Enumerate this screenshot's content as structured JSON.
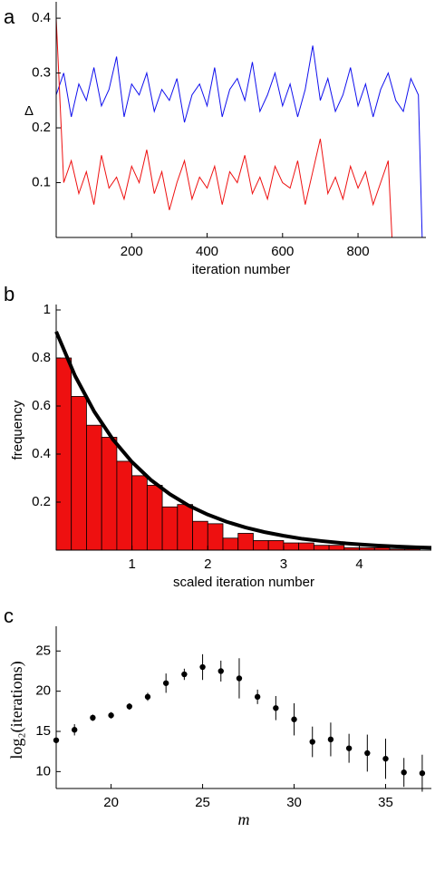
{
  "chart_data": [
    {
      "type": "line",
      "panel_label": "a",
      "ylabel": "Δ",
      "xlabel": "iteration number",
      "xlim": [
        0,
        980
      ],
      "xticks": [
        200,
        400,
        600,
        800
      ],
      "ylim": [
        0,
        0.42
      ],
      "yticks": [
        0.1,
        0.2,
        0.3,
        0.4
      ],
      "series": [
        {
          "color": "#1010ee",
          "x": [
            0,
            20,
            40,
            60,
            80,
            100,
            120,
            140,
            160,
            180,
            200,
            220,
            240,
            260,
            280,
            300,
            320,
            340,
            360,
            380,
            400,
            420,
            440,
            460,
            480,
            500,
            520,
            540,
            560,
            580,
            600,
            620,
            640,
            660,
            680,
            700,
            720,
            740,
            760,
            780,
            800,
            820,
            840,
            860,
            880,
            900,
            920,
            940,
            960,
            970
          ],
          "values": [
            0.26,
            0.3,
            0.22,
            0.28,
            0.25,
            0.31,
            0.24,
            0.27,
            0.33,
            0.22,
            0.28,
            0.26,
            0.3,
            0.23,
            0.27,
            0.25,
            0.29,
            0.21,
            0.26,
            0.28,
            0.24,
            0.31,
            0.22,
            0.27,
            0.29,
            0.25,
            0.32,
            0.23,
            0.26,
            0.3,
            0.24,
            0.28,
            0.22,
            0.27,
            0.35,
            0.25,
            0.29,
            0.23,
            0.26,
            0.31,
            0.24,
            0.28,
            0.22,
            0.27,
            0.3,
            0.25,
            0.23,
            0.29,
            0.26,
            0.0
          ]
        },
        {
          "color": "#ee1010",
          "x": [
            0,
            20,
            40,
            60,
            80,
            100,
            120,
            140,
            160,
            180,
            200,
            220,
            240,
            260,
            280,
            300,
            320,
            340,
            360,
            380,
            400,
            420,
            440,
            460,
            480,
            500,
            520,
            540,
            560,
            580,
            600,
            620,
            640,
            660,
            680,
            700,
            720,
            740,
            760,
            780,
            800,
            820,
            840,
            860,
            880,
            890
          ],
          "values": [
            0.4,
            0.1,
            0.14,
            0.08,
            0.12,
            0.06,
            0.15,
            0.09,
            0.11,
            0.07,
            0.13,
            0.1,
            0.16,
            0.08,
            0.12,
            0.05,
            0.1,
            0.14,
            0.07,
            0.11,
            0.09,
            0.13,
            0.06,
            0.12,
            0.1,
            0.15,
            0.08,
            0.11,
            0.07,
            0.13,
            0.1,
            0.09,
            0.14,
            0.06,
            0.12,
            0.18,
            0.08,
            0.11,
            0.07,
            0.13,
            0.09,
            0.12,
            0.06,
            0.1,
            0.14,
            0.0
          ]
        }
      ]
    },
    {
      "type": "histogram",
      "panel_label": "b",
      "ylabel": "frequency",
      "xlabel": "scaled iteration number",
      "xlim": [
        0,
        4.95
      ],
      "xticks": [
        1,
        2,
        3,
        4
      ],
      "ylim": [
        0,
        1
      ],
      "yticks": [
        0.2,
        0.4,
        0.6,
        0.8,
        1
      ],
      "color": "#ee1010",
      "bins": [
        0,
        0.2,
        0.4,
        0.6,
        0.8,
        1.0,
        1.2,
        1.4,
        1.6,
        1.8,
        2.0,
        2.2,
        2.4,
        2.6,
        2.8,
        3.0,
        3.2,
        3.4,
        3.6,
        3.8,
        4.0,
        4.2,
        4.4,
        4.6,
        4.8
      ],
      "values": [
        0.8,
        0.64,
        0.52,
        0.47,
        0.37,
        0.31,
        0.27,
        0.18,
        0.19,
        0.12,
        0.11,
        0.05,
        0.07,
        0.04,
        0.04,
        0.03,
        0.03,
        0.02,
        0.02,
        0.01,
        0.01,
        0.01,
        0.005,
        0.005
      ],
      "fit": {
        "color": "#000000",
        "x": [
          0,
          0.25,
          0.5,
          0.75,
          1,
          1.25,
          1.5,
          1.75,
          2,
          2.25,
          2.5,
          2.75,
          3,
          3.25,
          3.5,
          3.75,
          4,
          4.25,
          4.5,
          4.75,
          4.95
        ],
        "values": [
          0.91,
          0.725,
          0.578,
          0.46,
          0.367,
          0.292,
          0.233,
          0.185,
          0.148,
          0.118,
          0.094,
          0.075,
          0.06,
          0.047,
          0.038,
          0.03,
          0.024,
          0.019,
          0.015,
          0.012,
          0.01
        ]
      }
    },
    {
      "type": "errorbar",
      "panel_label": "c",
      "ylabel": "log₂(iterations)",
      "xlabel": "m",
      "xlim": [
        17,
        37.5
      ],
      "xticks": [
        20,
        25,
        30,
        35
      ],
      "ylim": [
        7.9,
        27.4
      ],
      "yticks": [
        10,
        15,
        20,
        25
      ],
      "color": "#000000",
      "x": [
        17,
        18,
        19,
        20,
        21,
        22,
        23,
        24,
        25,
        26,
        27,
        28,
        29,
        30,
        31,
        32,
        33,
        34,
        35,
        36,
        37
      ],
      "values": [
        13.9,
        15.2,
        16.7,
        17.0,
        18.1,
        19.3,
        21.0,
        22.1,
        23.0,
        22.5,
        21.6,
        19.3,
        17.9,
        16.5,
        13.7,
        14.0,
        12.9,
        12.3,
        11.6,
        9.9,
        9.8
      ],
      "errors": [
        0,
        0.7,
        0.4,
        0.4,
        0.4,
        0.5,
        1.2,
        0.7,
        1.6,
        1.3,
        2.5,
        0.9,
        1.5,
        2.0,
        1.9,
        2.1,
        1.8,
        2.3,
        2.5,
        1.8,
        2.3
      ]
    }
  ]
}
